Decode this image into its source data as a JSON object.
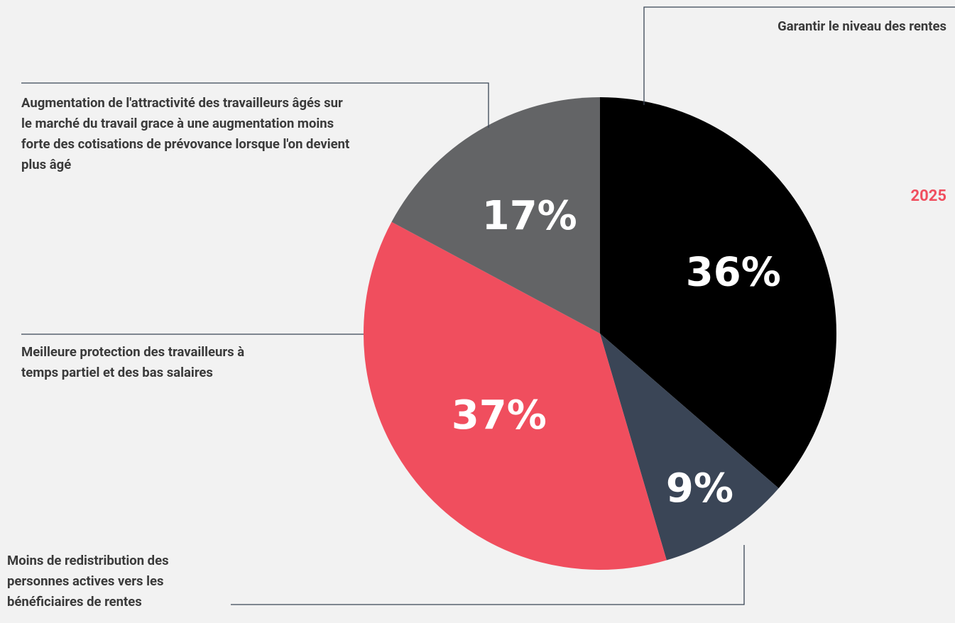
{
  "chart_data": {
    "type": "pie",
    "subtitle": "2025",
    "categories": [
      "Garantir le niveau des rentes",
      "Moins de redistribution des personnes actives vers les bénéficiaires de rentes",
      "Meilleure protection des travailleurs à temps partiel et des bas salaires",
      "Augmentation de l'attractivité des travailleurs âgés sur le marché du travail grace à une augmentation moins forte des cotisations de prévovance lorsque l'on devient plus âgé"
    ],
    "values": [
      36,
      9,
      37,
      17
    ],
    "value_labels": [
      "36%",
      "9%",
      "37%",
      "17%"
    ],
    "colors": [
      "#000000",
      "#3a4556",
      "#f04e5e",
      "#636466"
    ]
  }
}
